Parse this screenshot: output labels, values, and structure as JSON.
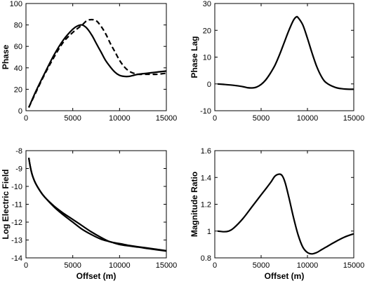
{
  "figure": {
    "colors": {
      "line": "#000000",
      "background": "#ffffff"
    }
  },
  "chart_data": [
    {
      "type": "line",
      "xlabel": "",
      "ylabel": "Phase",
      "xlim": [
        0,
        15000
      ],
      "ylim": [
        0,
        100
      ],
      "xticks": [
        "0",
        "5000",
        "10000",
        "15000"
      ],
      "yticks": [
        "0",
        "20",
        "40",
        "60",
        "80",
        "100"
      ],
      "grid": false,
      "series": [
        {
          "style": "solid",
          "x": [
            300,
            1000,
            2000,
            3000,
            4000,
            5000,
            5500,
            6000,
            6500,
            7000,
            7500,
            8000,
            8500,
            9000,
            9500,
            10000,
            10500,
            11000,
            11500,
            12000,
            13000,
            14000,
            15000
          ],
          "y": [
            3,
            17,
            35,
            52,
            66,
            76,
            79,
            80,
            77,
            71,
            63,
            55,
            47,
            41,
            36,
            33,
            32,
            32,
            33,
            34,
            35,
            36,
            37
          ]
        },
        {
          "style": "dashed",
          "x": [
            300,
            1000,
            2000,
            3000,
            4000,
            5000,
            6000,
            6500,
            7000,
            7500,
            8000,
            8500,
            9000,
            9500,
            10000,
            10500,
            11000,
            11500,
            12000,
            13000,
            14000,
            15000
          ],
          "y": [
            3,
            16,
            34,
            50,
            64,
            73,
            80,
            84,
            85,
            84,
            79,
            72,
            63,
            55,
            47,
            41,
            37,
            35,
            34,
            34,
            34,
            35
          ]
        }
      ]
    },
    {
      "type": "line",
      "xlabel": "",
      "ylabel": "Phase Lag",
      "xlim": [
        0,
        15000
      ],
      "ylim": [
        -10,
        30
      ],
      "xticks": [
        "0",
        "5000",
        "10000",
        "15000"
      ],
      "yticks": [
        "-10",
        "0",
        "10",
        "20",
        "30"
      ],
      "grid": false,
      "series": [
        {
          "style": "solid",
          "x": [
            300,
            1000,
            2000,
            3000,
            3500,
            4000,
            4500,
            5000,
            5500,
            6000,
            6500,
            7000,
            7500,
            8000,
            8500,
            8800,
            9000,
            9500,
            10000,
            10500,
            11000,
            11500,
            12000,
            13000,
            14000,
            15000
          ],
          "y": [
            0,
            -0.2,
            -0.5,
            -1.0,
            -1.4,
            -1.5,
            -1.2,
            -0.2,
            1.5,
            4,
            7,
            11,
            15.5,
            20,
            23.8,
            25,
            24.7,
            22,
            17,
            11.5,
            6.5,
            2.8,
            0.5,
            -1.3,
            -1.9,
            -2.0
          ]
        }
      ]
    },
    {
      "type": "line",
      "xlabel": "Offset (m)",
      "ylabel": "Log Electric Field",
      "xlim": [
        0,
        15000
      ],
      "ylim": [
        -14,
        -8
      ],
      "xticks": [
        "0",
        "5000",
        "10000",
        "15000"
      ],
      "yticks": [
        "-14",
        "-13",
        "-12",
        "-11",
        "-10",
        "-9",
        "-8"
      ],
      "grid": false,
      "series": [
        {
          "style": "solid",
          "x": [
            300,
            500,
            700,
            1000,
            1500,
            2000,
            3000,
            4000,
            5000,
            6000,
            7000,
            8000,
            9000,
            10000,
            11000,
            12000,
            13000,
            14000,
            15000
          ],
          "y": [
            -8.4,
            -9.0,
            -9.4,
            -9.8,
            -10.25,
            -10.6,
            -11.1,
            -11.5,
            -11.85,
            -12.2,
            -12.55,
            -12.85,
            -13.1,
            -13.2,
            -13.3,
            -13.38,
            -13.45,
            -13.52,
            -13.6
          ]
        },
        {
          "style": "solid",
          "x": [
            300,
            500,
            700,
            1000,
            1500,
            2000,
            3000,
            4000,
            5000,
            6000,
            7000,
            8000,
            9000,
            10000,
            11000,
            12000,
            13000,
            14000,
            15000
          ],
          "y": [
            -8.4,
            -9.0,
            -9.4,
            -9.8,
            -10.25,
            -10.6,
            -11.15,
            -11.6,
            -12.0,
            -12.4,
            -12.7,
            -12.95,
            -13.1,
            -13.25,
            -13.33,
            -13.4,
            -13.48,
            -13.55,
            -13.62
          ]
        }
      ]
    },
    {
      "type": "line",
      "xlabel": "Offset (m)",
      "ylabel": "Magnitude Ratio",
      "xlim": [
        0,
        15000
      ],
      "ylim": [
        0.8,
        1.6
      ],
      "xticks": [
        "0",
        "5000",
        "10000",
        "15000"
      ],
      "yticks": [
        "0.8",
        "1",
        "1.2",
        "1.4",
        "1.6"
      ],
      "grid": false,
      "series": [
        {
          "style": "solid",
          "x": [
            300,
            1000,
            1500,
            2000,
            3000,
            4000,
            5000,
            6000,
            6500,
            7000,
            7300,
            7600,
            8000,
            8500,
            9000,
            9500,
            10000,
            10500,
            11000,
            11500,
            12000,
            13000,
            14000,
            15000
          ],
          "y": [
            1.0,
            0.995,
            1.0,
            1.02,
            1.09,
            1.18,
            1.27,
            1.36,
            1.41,
            1.425,
            1.41,
            1.36,
            1.25,
            1.1,
            0.97,
            0.88,
            0.84,
            0.83,
            0.84,
            0.86,
            0.88,
            0.92,
            0.955,
            0.98
          ]
        }
      ]
    }
  ]
}
